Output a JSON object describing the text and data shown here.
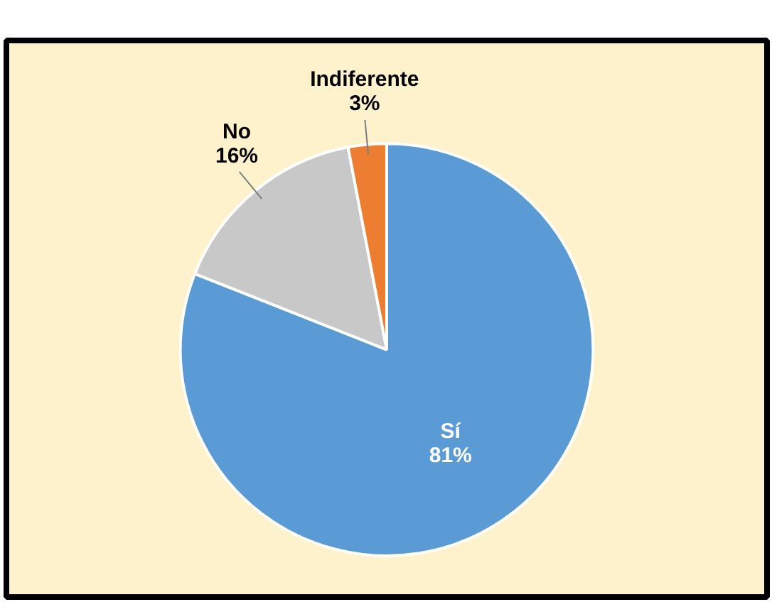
{
  "chart_data": {
    "type": "pie",
    "categories": [
      "Sí",
      "No",
      "Indiferente"
    ],
    "values": [
      81,
      16,
      3
    ],
    "colors": [
      "#5b9bd5",
      "#c8c8c8",
      "#ed7d31"
    ],
    "value_labels": [
      "81%",
      "16%",
      "3%"
    ]
  }
}
